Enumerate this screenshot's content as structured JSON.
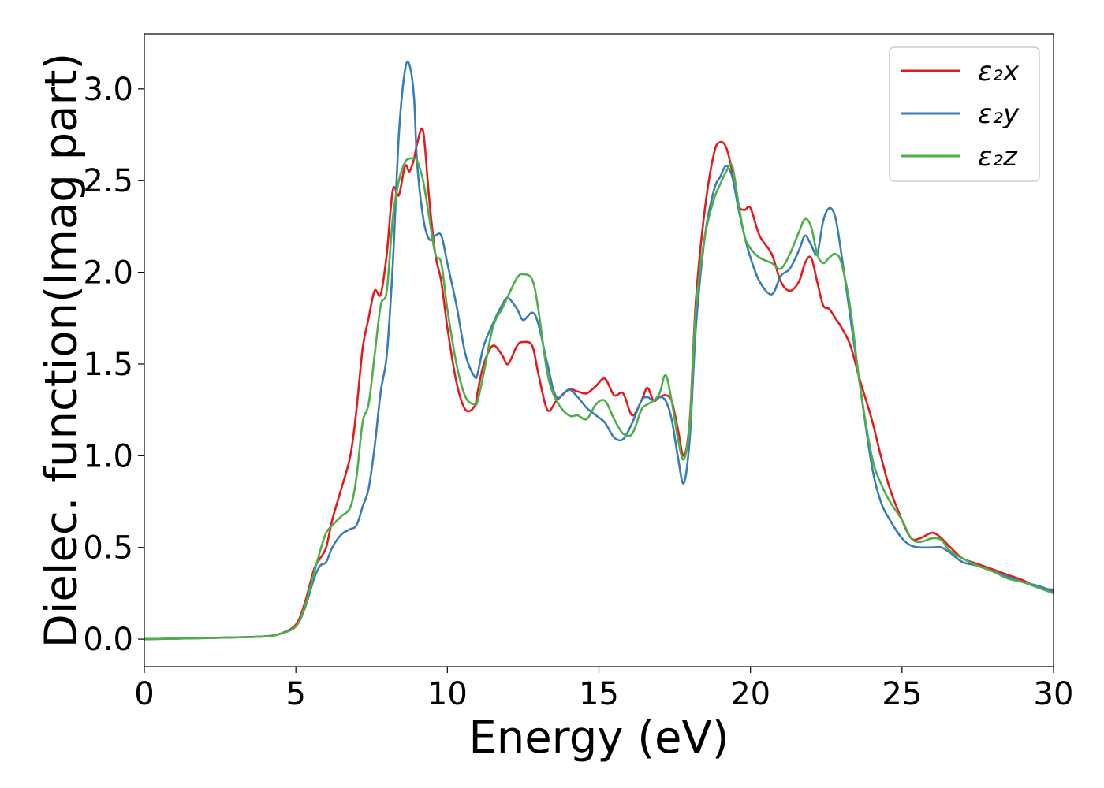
{
  "chart_data": {
    "type": "line",
    "xlabel": "Energy (eV)",
    "ylabel": "Dielec. function(Imag part)",
    "xlim": [
      0,
      30
    ],
    "ylim": [
      -0.15,
      3.3
    ],
    "xticks": [
      0,
      5,
      10,
      15,
      20,
      25,
      30
    ],
    "yticks": [
      0.0,
      0.5,
      1.0,
      1.5,
      2.0,
      2.5,
      3.0
    ],
    "grid": false,
    "legend_position": "top-right",
    "x": [
      0,
      1,
      2,
      3,
      4,
      4.5,
      5,
      5.3,
      5.6,
      5.8,
      6.0,
      6.2,
      6.5,
      6.8,
      7.0,
      7.2,
      7.4,
      7.6,
      7.8,
      8.0,
      8.2,
      8.4,
      8.6,
      8.75,
      8.9,
      9.0,
      9.2,
      9.4,
      9.6,
      9.8,
      10.0,
      10.3,
      10.6,
      10.9,
      11.0,
      11.2,
      11.5,
      11.8,
      12.0,
      12.3,
      12.5,
      12.8,
      13.0,
      13.3,
      13.6,
      14.0,
      14.3,
      14.6,
      14.9,
      15.2,
      15.5,
      15.8,
      16.1,
      16.4,
      16.6,
      16.8,
      17.0,
      17.2,
      17.4,
      17.6,
      17.8,
      18.0,
      18.2,
      18.5,
      18.8,
      19.0,
      19.2,
      19.4,
      19.6,
      19.8,
      20.0,
      20.3,
      20.7,
      21.0,
      21.3,
      21.6,
      21.8,
      22.0,
      22.2,
      22.4,
      22.6,
      22.8,
      23.0,
      23.3,
      23.6,
      24.0,
      24.3,
      24.6,
      25.0,
      25.3,
      25.6,
      26.0,
      26.3,
      26.6,
      27.0,
      27.5,
      28.0,
      28.5,
      29.0,
      29.5,
      30.0
    ],
    "series": [
      {
        "name": "ε₂x",
        "color": "#e41a1c",
        "values": [
          0.0,
          0.003,
          0.006,
          0.01,
          0.015,
          0.03,
          0.08,
          0.2,
          0.38,
          0.44,
          0.5,
          0.65,
          0.82,
          1.0,
          1.25,
          1.58,
          1.75,
          1.9,
          1.88,
          2.1,
          2.45,
          2.42,
          2.58,
          2.55,
          2.62,
          2.7,
          2.77,
          2.4,
          2.1,
          1.95,
          1.7,
          1.4,
          1.25,
          1.27,
          1.35,
          1.5,
          1.6,
          1.55,
          1.5,
          1.6,
          1.62,
          1.6,
          1.45,
          1.25,
          1.3,
          1.36,
          1.35,
          1.34,
          1.38,
          1.42,
          1.33,
          1.34,
          1.22,
          1.3,
          1.37,
          1.3,
          1.32,
          1.33,
          1.3,
          1.15,
          1.0,
          1.2,
          1.85,
          2.35,
          2.65,
          2.71,
          2.68,
          2.55,
          2.37,
          2.34,
          2.35,
          2.2,
          2.1,
          1.95,
          1.9,
          1.95,
          2.05,
          2.08,
          1.95,
          1.82,
          1.8,
          1.75,
          1.7,
          1.6,
          1.42,
          1.2,
          1.0,
          0.82,
          0.65,
          0.55,
          0.55,
          0.58,
          0.55,
          0.5,
          0.44,
          0.41,
          0.38,
          0.35,
          0.32,
          0.28,
          0.27
        ]
      },
      {
        "name": "ε₂y",
        "color": "#377eb8",
        "values": [
          0.0,
          0.003,
          0.006,
          0.01,
          0.015,
          0.03,
          0.07,
          0.17,
          0.33,
          0.4,
          0.42,
          0.5,
          0.57,
          0.6,
          0.62,
          0.72,
          0.82,
          1.05,
          1.35,
          1.55,
          2.05,
          2.75,
          3.1,
          3.13,
          2.95,
          2.6,
          2.3,
          2.18,
          2.2,
          2.2,
          2.05,
          1.82,
          1.55,
          1.43,
          1.45,
          1.6,
          1.72,
          1.82,
          1.86,
          1.8,
          1.74,
          1.78,
          1.72,
          1.5,
          1.32,
          1.36,
          1.32,
          1.26,
          1.22,
          1.18,
          1.1,
          1.09,
          1.18,
          1.3,
          1.32,
          1.3,
          1.32,
          1.3,
          1.2,
          1.0,
          0.85,
          1.1,
          1.7,
          2.2,
          2.45,
          2.52,
          2.58,
          2.52,
          2.35,
          2.2,
          2.08,
          1.95,
          1.88,
          1.98,
          2.02,
          2.12,
          2.2,
          2.15,
          2.1,
          2.28,
          2.35,
          2.3,
          2.1,
          1.75,
          1.4,
          0.95,
          0.75,
          0.65,
          0.55,
          0.51,
          0.5,
          0.5,
          0.5,
          0.47,
          0.42,
          0.4,
          0.37,
          0.34,
          0.31,
          0.29,
          0.26
        ]
      },
      {
        "name": "ε₂z",
        "color": "#4daf4a",
        "values": [
          0.0,
          0.003,
          0.006,
          0.01,
          0.015,
          0.03,
          0.07,
          0.18,
          0.36,
          0.48,
          0.58,
          0.62,
          0.67,
          0.72,
          0.88,
          1.18,
          1.28,
          1.55,
          1.82,
          1.9,
          2.3,
          2.5,
          2.6,
          2.62,
          2.62,
          2.61,
          2.5,
          2.3,
          2.1,
          2.05,
          1.8,
          1.5,
          1.32,
          1.28,
          1.3,
          1.45,
          1.7,
          1.8,
          1.87,
          1.97,
          1.99,
          1.96,
          1.8,
          1.45,
          1.3,
          1.22,
          1.22,
          1.2,
          1.28,
          1.3,
          1.2,
          1.12,
          1.12,
          1.25,
          1.28,
          1.3,
          1.34,
          1.44,
          1.3,
          1.1,
          0.98,
          1.18,
          1.8,
          2.2,
          2.4,
          2.48,
          2.55,
          2.58,
          2.38,
          2.2,
          2.13,
          2.08,
          2.05,
          2.02,
          2.1,
          2.22,
          2.29,
          2.25,
          2.1,
          2.05,
          2.08,
          2.1,
          2.05,
          1.8,
          1.4,
          1.0,
          0.85,
          0.75,
          0.65,
          0.55,
          0.53,
          0.55,
          0.54,
          0.48,
          0.44,
          0.4,
          0.37,
          0.33,
          0.31,
          0.28,
          0.25
        ]
      }
    ]
  }
}
